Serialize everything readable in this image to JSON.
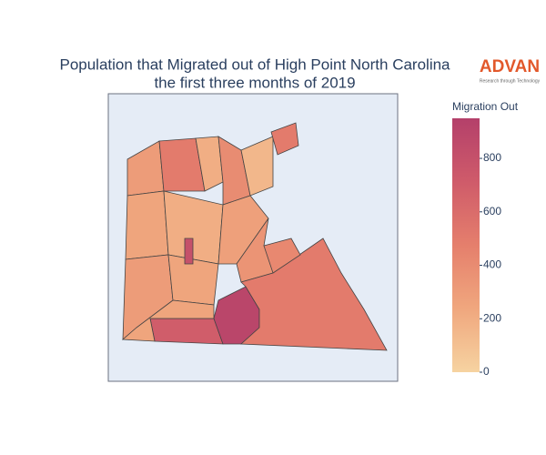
{
  "chart_data": {
    "type": "choropleth",
    "title": [
      "Population that Migrated out of High Point North Carolina",
      "the first three months of 2019"
    ],
    "logo": {
      "name": "ADVAN",
      "tagline": "Research through Technology"
    },
    "colorbar_title": "Migration Out",
    "zlim": [
      0,
      950
    ],
    "zticks": [
      0,
      200,
      400,
      600,
      800
    ],
    "colorscale": [
      "#f6d3a1",
      "#f0a77e",
      "#e57f6c",
      "#cf5b6a",
      "#b4406a"
    ],
    "values": [
      300,
      500,
      200,
      400,
      150,
      500,
      250,
      200,
      280,
      300,
      250,
      350,
      700,
      250,
      900,
      500,
      420,
      800
    ]
  }
}
